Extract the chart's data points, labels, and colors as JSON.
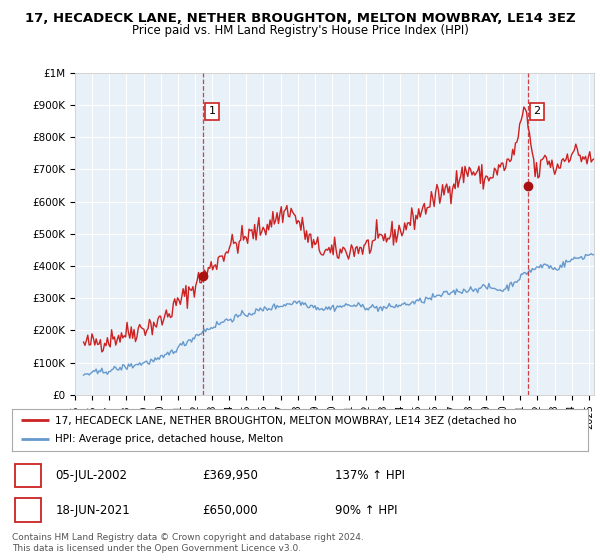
{
  "title": "17, HECADECK LANE, NETHER BROUGHTON, MELTON MOWBRAY, LE14 3EZ",
  "subtitle": "Price paid vs. HM Land Registry's House Price Index (HPI)",
  "ylim": [
    0,
    1000000
  ],
  "yticks": [
    0,
    100000,
    200000,
    300000,
    400000,
    500000,
    600000,
    700000,
    800000,
    900000,
    1000000
  ],
  "ytick_labels": [
    "£0",
    "£100K",
    "£200K",
    "£300K",
    "£400K",
    "£500K",
    "£600K",
    "£700K",
    "£800K",
    "£900K",
    "£1M"
  ],
  "xlim_start": 1995.5,
  "xlim_end": 2025.3,
  "xtick_years": [
    1995,
    1996,
    1997,
    1998,
    1999,
    2000,
    2001,
    2002,
    2003,
    2004,
    2005,
    2006,
    2007,
    2008,
    2009,
    2010,
    2011,
    2012,
    2013,
    2014,
    2015,
    2016,
    2017,
    2018,
    2019,
    2020,
    2021,
    2022,
    2023,
    2024,
    2025
  ],
  "hpi_color": "#6699cc",
  "price_color": "#cc2222",
  "dashed_color": "#cc2222",
  "marker_color": "#aa1111",
  "background_color": "#ffffff",
  "plot_bg_color": "#e8f0f8",
  "grid_color": "#ffffff",
  "transaction1_x": 2002.5,
  "transaction1_y": 369950,
  "transaction2_x": 2021.45,
  "transaction2_y": 650000,
  "legend_label_red": "17, HECADECK LANE, NETHER BROUGHTON, MELTON MOWBRAY, LE14 3EZ (detached ho",
  "legend_label_blue": "HPI: Average price, detached house, Melton",
  "table_rows": [
    {
      "num": "1",
      "date": "05-JUL-2002",
      "price": "£369,950",
      "pct": "137% ↑ HPI"
    },
    {
      "num": "2",
      "date": "18-JUN-2021",
      "price": "£650,000",
      "pct": "90% ↑ HPI"
    }
  ],
  "footer": "Contains HM Land Registry data © Crown copyright and database right 2024.\nThis data is licensed under the Open Government Licence v3.0."
}
